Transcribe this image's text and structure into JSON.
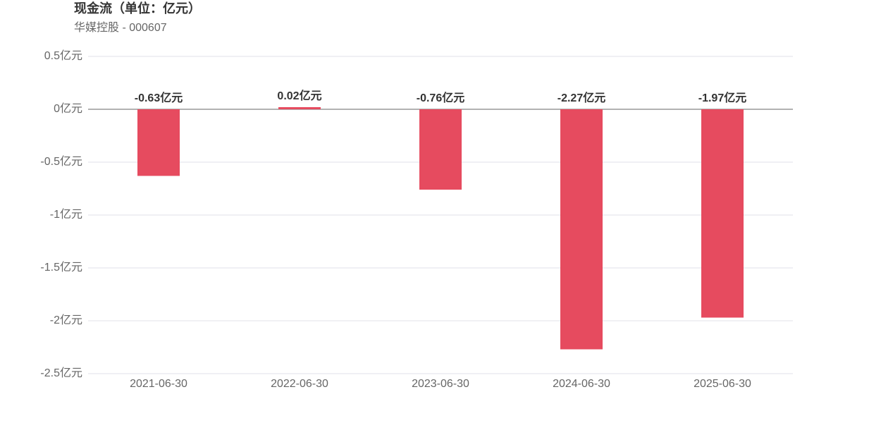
{
  "chart_data": {
    "type": "bar",
    "title": "现金流（单位：亿元）",
    "subtitle": "华媒控股 - 000607",
    "categories": [
      "2021-06-30",
      "2022-06-30",
      "2023-06-30",
      "2024-06-30",
      "2025-06-30"
    ],
    "values": [
      -0.63,
      0.02,
      -0.76,
      -2.27,
      -1.97
    ],
    "value_labels": [
      "-0.63亿元",
      "0.02亿元",
      "-0.76亿元",
      "-2.27亿元",
      "-1.97亿元"
    ],
    "color": "#e64b5f",
    "ylim": [
      -2.5,
      0.5
    ],
    "yticks": [
      {
        "value": -2.5,
        "label": "-2.5亿元"
      },
      {
        "value": -2,
        "label": "-2亿元"
      },
      {
        "value": -1.5,
        "label": "-1.5亿元"
      },
      {
        "value": -1,
        "label": "-1亿元"
      },
      {
        "value": -0.5,
        "label": "-0.5亿元"
      },
      {
        "value": 0,
        "label": "0亿元"
      },
      {
        "value": 0.5,
        "label": "0.5亿元"
      }
    ],
    "grid": true
  }
}
